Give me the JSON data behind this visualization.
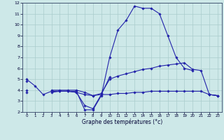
{
  "xlabel": "Graphe des températures (°c)",
  "background_color": "#cde8e8",
  "grid_color": "#aacccc",
  "line_color": "#2222aa",
  "x_hours": [
    0,
    1,
    2,
    3,
    4,
    5,
    6,
    7,
    8,
    9,
    10,
    11,
    12,
    13,
    14,
    15,
    16,
    17,
    18,
    19,
    20,
    21,
    22,
    23
  ],
  "series": {
    "line1": [
      5.0,
      4.4,
      3.6,
      3.9,
      3.9,
      3.9,
      3.9,
      2.2,
      2.2,
      3.5,
      7.0,
      9.5,
      10.4,
      11.7,
      11.5,
      11.5,
      11.0,
      9.0,
      7.0,
      6.0,
      5.8,
      null,
      3.6,
      3.5
    ],
    "line2": [
      4.8,
      null,
      null,
      3.9,
      3.9,
      3.9,
      3.8,
      2.6,
      2.3,
      3.6,
      5.2,
      null,
      null,
      null,
      null,
      null,
      null,
      null,
      null,
      null,
      null,
      null,
      null,
      null
    ],
    "line3": [
      4.0,
      null,
      null,
      4.0,
      4.0,
      4.0,
      4.0,
      3.8,
      3.5,
      3.7,
      5.0,
      5.3,
      5.5,
      5.7,
      5.9,
      6.0,
      6.2,
      6.3,
      6.4,
      6.5,
      5.9,
      5.8,
      3.6,
      3.5
    ],
    "line4": [
      3.8,
      null,
      null,
      3.8,
      3.9,
      3.9,
      3.8,
      3.6,
      3.5,
      3.6,
      3.6,
      3.7,
      3.7,
      3.8,
      3.8,
      3.9,
      3.9,
      3.9,
      3.9,
      3.9,
      3.9,
      3.9,
      3.6,
      3.5
    ]
  },
  "ylim": [
    2,
    12
  ],
  "yticks": [
    2,
    3,
    4,
    5,
    6,
    7,
    8,
    9,
    10,
    11,
    12
  ],
  "xticks": [
    0,
    1,
    2,
    3,
    4,
    5,
    6,
    7,
    8,
    9,
    10,
    11,
    12,
    13,
    14,
    15,
    16,
    17,
    18,
    19,
    20,
    21,
    22,
    23
  ],
  "figsize": [
    3.2,
    2.0
  ],
  "dpi": 100
}
